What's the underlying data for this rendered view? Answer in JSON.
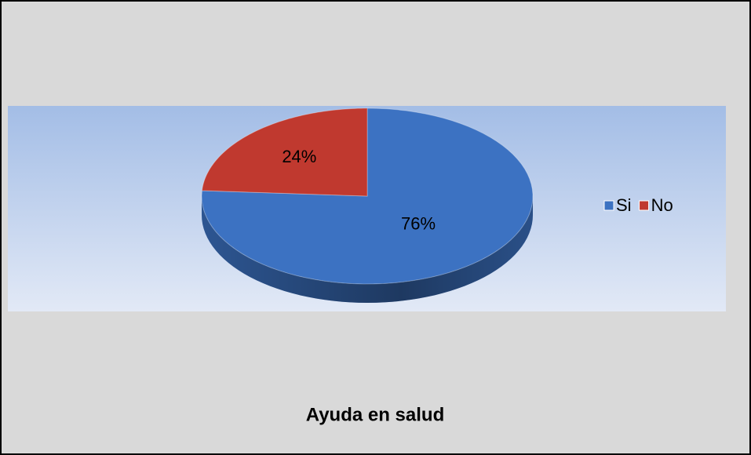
{
  "chart_data": {
    "type": "pie",
    "title": "Ayuda en salud",
    "categories": [
      "Si",
      "No"
    ],
    "values": [
      76,
      24
    ],
    "value_labels": [
      "76%",
      "24%"
    ],
    "colors": [
      "#3c72c2",
      "#c0392f"
    ],
    "legend": "right"
  }
}
